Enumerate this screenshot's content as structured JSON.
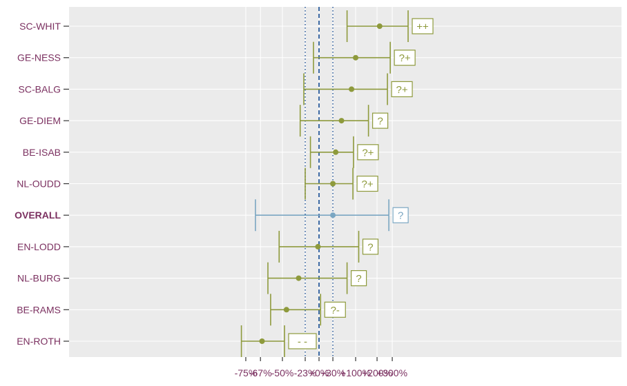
{
  "chart_data": {
    "type": "forest",
    "axis_scale": "log-ratio",
    "grid": true,
    "x_tick_labels": [
      {
        "label": "-75%",
        "value": -75
      },
      {
        "label": "-67%",
        "value": -67
      },
      {
        "label": "-50%",
        "value": -50
      },
      {
        "label": "-23%",
        "value": -23
      },
      {
        "label": "+0%",
        "value": 0
      },
      {
        "label": "+30%",
        "value": 30
      },
      {
        "label": "+100%",
        "value": 100
      },
      {
        "label": "+200%",
        "value": 200
      },
      {
        "label": "+300%",
        "value": 300
      }
    ],
    "reference_lines": [
      {
        "value": 0,
        "style": "dashed",
        "color": "#2a5b9c"
      },
      {
        "value": -23,
        "style": "dotted",
        "color": "#2a5b9c"
      },
      {
        "value": 30,
        "style": "dotted",
        "color": "#2a5b9c"
      }
    ],
    "rows": [
      {
        "label": "SC-WHIT",
        "estimate": 215,
        "lower": 70,
        "upper": 440,
        "badge": "++",
        "overall": false
      },
      {
        "label": "GE-NESS",
        "estimate": 100,
        "lower": -10,
        "upper": 285,
        "badge": "?+",
        "overall": false
      },
      {
        "label": "SC-BALG",
        "estimate": 85,
        "lower": -25,
        "upper": 265,
        "badge": "?+",
        "overall": false
      },
      {
        "label": "GE-DIEM",
        "estimate": 53,
        "lower": -30,
        "upper": 155,
        "badge": "?",
        "overall": false
      },
      {
        "label": "BE-ISAB",
        "estimate": 37,
        "lower": -15,
        "upper": 92,
        "badge": "?+",
        "overall": false
      },
      {
        "label": "NL-OUDD",
        "estimate": 30,
        "lower": -23,
        "upper": 90,
        "badge": "?+",
        "overall": false
      },
      {
        "label": "OVERALL",
        "estimate": 30,
        "lower": -70,
        "upper": 275,
        "badge": "?",
        "overall": true
      },
      {
        "label": "EN-LODD",
        "estimate": -2,
        "lower": -53,
        "upper": 112,
        "badge": "?",
        "overall": false
      },
      {
        "label": "NL-BURG",
        "estimate": -32,
        "lower": -62,
        "upper": 70,
        "badge": "?",
        "overall": false
      },
      {
        "label": "BE-RAMS",
        "estimate": -46,
        "lower": -60,
        "upper": 3,
        "badge": "?-",
        "overall": false
      },
      {
        "label": "EN-ROTH",
        "estimate": -66,
        "lower": -77,
        "upper": -48,
        "badge": "- -",
        "overall": false
      }
    ],
    "colors": {
      "site": "#8e9a3c",
      "overall": "#7aa6c2",
      "panel": "#ebebeb",
      "grid": "#ffffff",
      "label": "#7b3060",
      "reference": "#2a5b9c"
    }
  }
}
